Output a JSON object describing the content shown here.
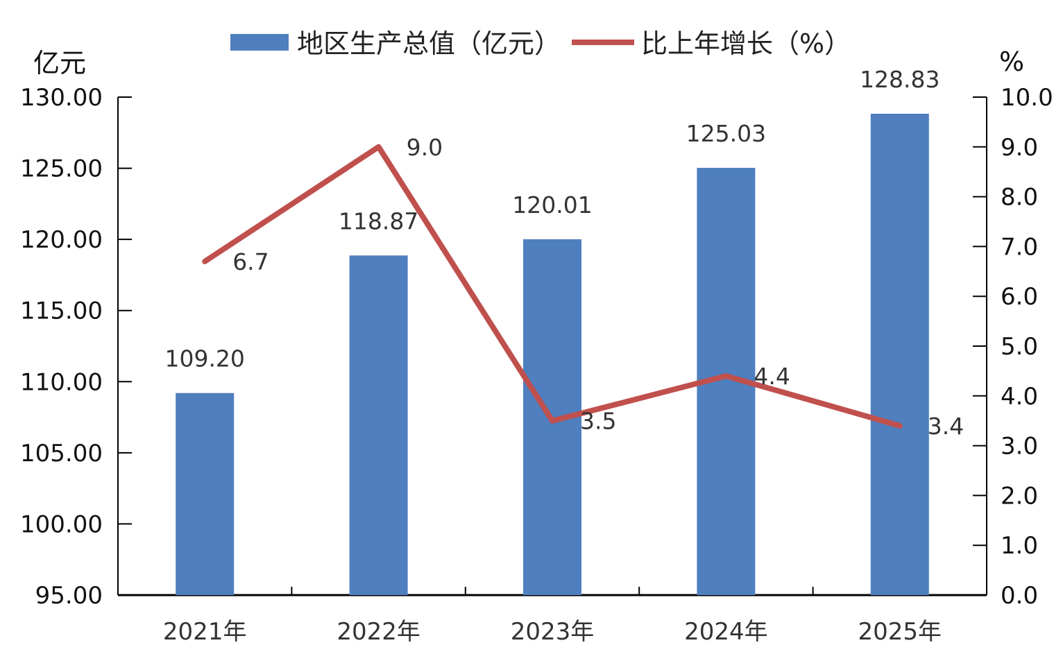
{
  "chart_data": {
    "type": "bar",
    "categories": [
      "2021年",
      "2022年",
      "2023年",
      "2024年",
      "2025年"
    ],
    "series": [
      {
        "name": "地区生产总值（亿元）",
        "type": "bar",
        "axis": "left",
        "values": [
          109.2,
          118.87,
          120.01,
          125.03,
          128.83
        ],
        "labels": [
          "109.20",
          "118.87",
          "120.01",
          "125.03",
          "128.83"
        ],
        "color": "#4f7fbe"
      },
      {
        "name": "比上年增长（%）",
        "type": "line",
        "axis": "right",
        "values": [
          6.7,
          9.0,
          3.5,
          4.4,
          3.4
        ],
        "labels": [
          "6.7",
          "9.0",
          "3.5",
          "4.4",
          "3.4"
        ],
        "color": "#c0504d"
      }
    ],
    "y_left": {
      "unit": "亿元",
      "range": [
        95,
        130
      ],
      "ticks": [
        "95.00",
        "100.00",
        "105.00",
        "110.00",
        "115.00",
        "120.00",
        "125.00",
        "130.00"
      ]
    },
    "y_right": {
      "unit": "%",
      "range": [
        0,
        10
      ],
      "ticks": [
        "0.0",
        "1.0",
        "2.0",
        "3.0",
        "4.0",
        "5.0",
        "6.0",
        "7.0",
        "8.0",
        "9.0",
        "10.0"
      ]
    },
    "legend_position": "top",
    "grid": false
  }
}
